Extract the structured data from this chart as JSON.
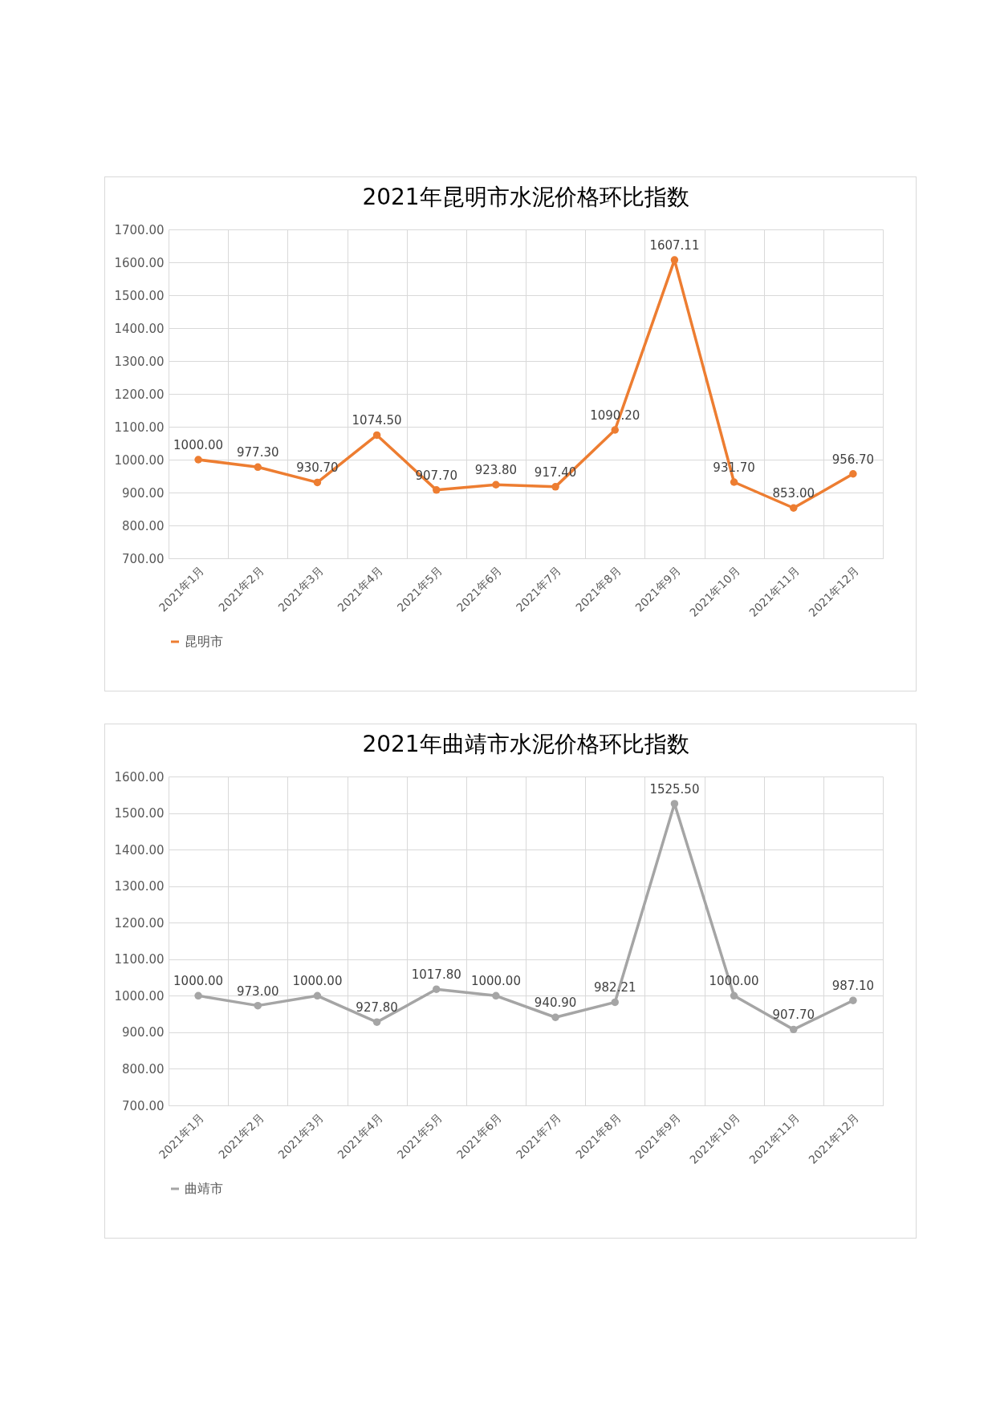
{
  "chart_data": [
    {
      "type": "line",
      "title": "2021年昆明市水泥价格环比指数",
      "categories": [
        "2021年1月",
        "2021年2月",
        "2021年3月",
        "2021年4月",
        "2021年5月",
        "2021年6月",
        "2021年7月",
        "2021年8月",
        "2021年9月",
        "2021年10月",
        "2021年11月",
        "2021年12月"
      ],
      "series": [
        {
          "name": "昆明市",
          "color": "#ed7d31",
          "values": [
            1000.0,
            977.3,
            930.7,
            1074.5,
            907.7,
            923.8,
            917.4,
            1090.2,
            1607.11,
            931.7,
            853.0,
            956.7
          ],
          "value_labels": [
            "1000.00",
            "977.30",
            "930.70",
            "1074.50",
            "907.70",
            "923.80",
            "917.40",
            "1090.20",
            "1607.11",
            "931.70",
            "853.00",
            "956.70"
          ]
        }
      ],
      "ylim": [
        700,
        1700
      ],
      "yticks": [
        {
          "value": 700,
          "label": "700.00"
        },
        {
          "value": 800,
          "label": "800.00"
        },
        {
          "value": 900,
          "label": "900.00"
        },
        {
          "value": 1000,
          "label": "1000.00"
        },
        {
          "value": 1100,
          "label": "1100.00"
        },
        {
          "value": 1200,
          "label": "1200.00"
        },
        {
          "value": 1300,
          "label": "1300.00"
        },
        {
          "value": 1400,
          "label": "1400.00"
        },
        {
          "value": 1500,
          "label": "1500.00"
        },
        {
          "value": 1600,
          "label": "1600.00"
        },
        {
          "value": 1700,
          "label": "1700.00"
        }
      ],
      "grid": true,
      "legend": "bottom",
      "marker": "circle",
      "line_style": "solid"
    },
    {
      "type": "line",
      "title": "2021年曲靖市水泥价格环比指数",
      "categories": [
        "2021年1月",
        "2021年2月",
        "2021年3月",
        "2021年4月",
        "2021年5月",
        "2021年6月",
        "2021年7月",
        "2021年8月",
        "2021年9月",
        "2021年10月",
        "2021年11月",
        "2021年12月"
      ],
      "series": [
        {
          "name": "曲靖市",
          "color": "#a5a5a5",
          "values": [
            1000.0,
            973.0,
            1000.0,
            927.8,
            1017.8,
            1000.0,
            940.9,
            982.21,
            1525.5,
            1000.0,
            907.7,
            987.1
          ],
          "value_labels": [
            "1000.00",
            "973.00",
            "1000.00",
            "927.80",
            "1017.80",
            "1000.00",
            "940.90",
            "982.21",
            "1525.50",
            "1000.00",
            "907.70",
            "987.10"
          ]
        }
      ],
      "ylim": [
        700,
        1600
      ],
      "yticks": [
        {
          "value": 700,
          "label": "700.00"
        },
        {
          "value": 800,
          "label": "800.00"
        },
        {
          "value": 900,
          "label": "900.00"
        },
        {
          "value": 1000,
          "label": "1000.00"
        },
        {
          "value": 1100,
          "label": "1100.00"
        },
        {
          "value": 1200,
          "label": "1200.00"
        },
        {
          "value": 1300,
          "label": "1300.00"
        },
        {
          "value": 1400,
          "label": "1400.00"
        },
        {
          "value": 1500,
          "label": "1500.00"
        },
        {
          "value": 1600,
          "label": "1600.00"
        }
      ],
      "grid": true,
      "legend": "bottom",
      "marker": "circle",
      "line_style": "solid"
    }
  ]
}
